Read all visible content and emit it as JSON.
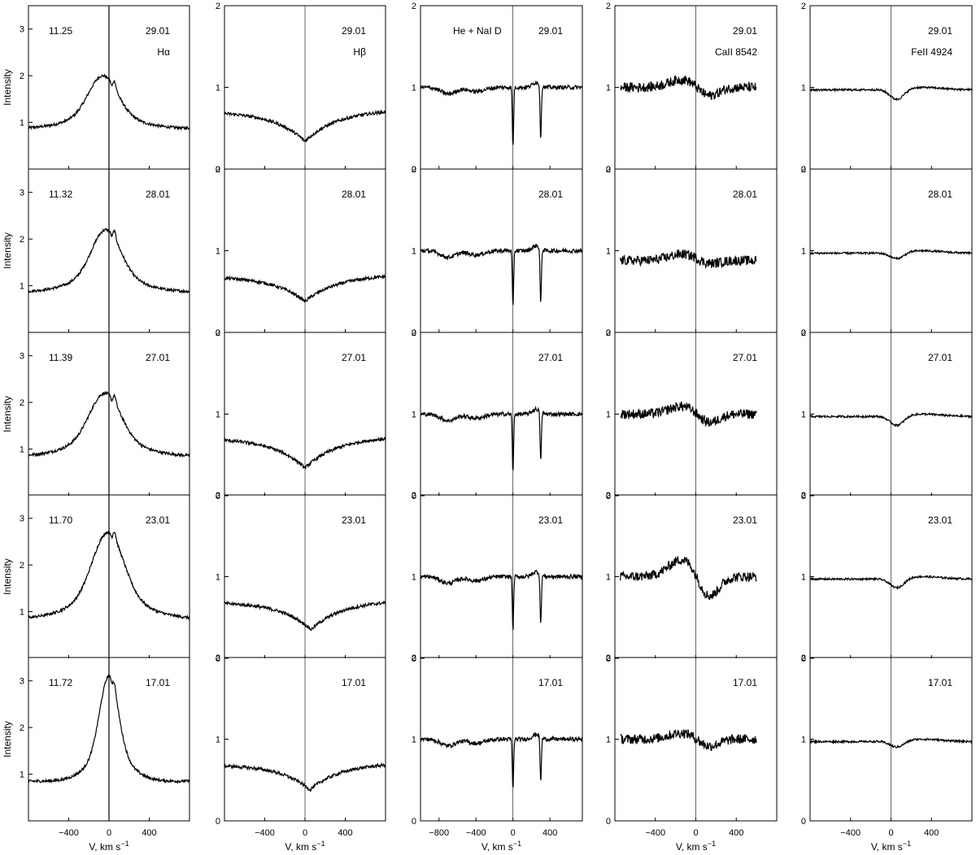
{
  "figure": {
    "ylabel": "Intensity",
    "xlabel_main": "V, km s",
    "xlabel_sup": "−1"
  },
  "chart_data": [
    {
      "type": "line",
      "column": 0,
      "line": "Hα",
      "xlim": [
        -800,
        800
      ],
      "ylim": [
        0,
        3.5
      ],
      "xticks": [
        -400,
        0,
        400
      ],
      "xtick_labels": [
        "−400",
        "0",
        "400"
      ],
      "ytick_values": [
        1,
        2,
        3
      ],
      "ytick_labels": [
        "1",
        "2",
        "3"
      ],
      "ylabel": "Intensity",
      "xlabel": "V, km s−1",
      "profile": {
        "kind": "emission"
      },
      "panels": [
        {
          "date": "29.01",
          "mag": "11.25",
          "label": "Hα",
          "baseline": 0.87,
          "peak": 2.0,
          "peak_v": -60,
          "width": 140
        },
        {
          "date": "28.01",
          "mag": "11.32",
          "baseline": 0.87,
          "peak": 2.2,
          "peak_v": -30,
          "width": 140
        },
        {
          "date": "27.01",
          "mag": "11.39",
          "baseline": 0.85,
          "peak": 2.2,
          "peak_v": -40,
          "width": 150
        },
        {
          "date": "23.01",
          "mag": "11.70",
          "baseline": 0.85,
          "peak": 2.7,
          "peak_v": -10,
          "width": 150
        },
        {
          "date": "17.01",
          "mag": "11.72",
          "baseline": 0.85,
          "peak": 3.1,
          "peak_v": 0,
          "width": 90
        }
      ]
    },
    {
      "type": "line",
      "column": 1,
      "line": "Hβ",
      "xlim": [
        -800,
        800
      ],
      "ylim": [
        0,
        2
      ],
      "xticks": [
        -400,
        0,
        400
      ],
      "xtick_labels": [
        "−400",
        "0",
        "400"
      ],
      "ytick_values": [
        0,
        1,
        2
      ],
      "ytick_labels": [
        "0",
        "1",
        "2"
      ],
      "xlabel": "V, km s−1",
      "profile": {
        "kind": "absorption"
      },
      "panels": [
        {
          "date": "29.01",
          "label": "Hβ",
          "baseline": 0.72,
          "depth": 0.38,
          "center_v": 0,
          "width": 320
        },
        {
          "date": "28.01",
          "baseline": 0.7,
          "depth": 0.32,
          "center_v": 0,
          "width": 320
        },
        {
          "date": "27.01",
          "baseline": 0.72,
          "depth": 0.38,
          "center_v": 0,
          "width": 320
        },
        {
          "date": "23.01",
          "baseline": 0.7,
          "depth": 0.35,
          "center_v": 60,
          "width": 300
        },
        {
          "date": "17.01",
          "baseline": 0.7,
          "depth": 0.32,
          "center_v": 50,
          "width": 300
        }
      ]
    },
    {
      "type": "line",
      "column": 2,
      "line": "He + NaI D",
      "xlim": [
        -1000,
        750
      ],
      "ylim": [
        0,
        2
      ],
      "xticks": [
        -800,
        -400,
        0,
        400
      ],
      "xtick_labels": [
        "−800",
        "−400",
        "0",
        "400"
      ],
      "ytick_values": [
        0,
        1,
        2
      ],
      "ytick_labels": [
        "0",
        "1",
        "2"
      ],
      "xlabel": "V, km s−1",
      "profile": {
        "kind": "nad"
      },
      "panels": [
        {
          "date": "29.01",
          "label": "He + NaI D",
          "baseline": 1.0,
          "dip1_v": 0,
          "dip1_depth": 0.73,
          "dip2_v": 300,
          "dip2_depth": 0.65
        },
        {
          "date": "28.01",
          "baseline": 1.0,
          "dip1_v": 0,
          "dip1_depth": 0.7,
          "dip2_v": 300,
          "dip2_depth": 0.68
        },
        {
          "date": "27.01",
          "baseline": 1.0,
          "dip1_v": 0,
          "dip1_depth": 0.72,
          "dip2_v": 300,
          "dip2_depth": 0.6
        },
        {
          "date": "23.01",
          "baseline": 1.0,
          "dip1_v": 0,
          "dip1_depth": 0.65,
          "dip2_v": 300,
          "dip2_depth": 0.62
        },
        {
          "date": "17.01",
          "baseline": 1.0,
          "dip1_v": 0,
          "dip1_depth": 0.62,
          "dip2_v": 300,
          "dip2_depth": 0.55
        }
      ]
    },
    {
      "type": "line",
      "column": 3,
      "line": "CaII 8542",
      "xlim": [
        -800,
        800
      ],
      "ylim": [
        0,
        2
      ],
      "xticks": [
        -400,
        0,
        400
      ],
      "xtick_labels": [
        "−400",
        "0",
        "400"
      ],
      "ytick_values": [
        0,
        1,
        2
      ],
      "ytick_labels": [
        "0",
        "1",
        "2"
      ],
      "xlabel": "V, km s−1",
      "profile": {
        "kind": "noisy"
      },
      "panels": [
        {
          "date": "29.01",
          "label": "CaII 8542",
          "baseline": 1.0,
          "bump": 0.1,
          "dip": 0.12
        },
        {
          "date": "28.01",
          "baseline": 0.88,
          "bump": 0.08,
          "dip": 0.05
        },
        {
          "date": "27.01",
          "baseline": 1.0,
          "bump": 0.1,
          "dip": 0.12
        },
        {
          "date": "23.01",
          "baseline": 1.0,
          "bump": 0.22,
          "dip": 0.28
        },
        {
          "date": "17.01",
          "baseline": 1.0,
          "bump": 0.08,
          "dip": 0.1
        }
      ]
    },
    {
      "type": "line",
      "column": 4,
      "line": "FeII 4924",
      "xlim": [
        -800,
        800
      ],
      "ylim": [
        0,
        2
      ],
      "xticks": [
        -400,
        0,
        400
      ],
      "xtick_labels": [
        "−400",
        "0",
        "400"
      ],
      "ytick_values": [
        0,
        1,
        2
      ],
      "ytick_labels": [
        "0",
        "1",
        "2"
      ],
      "xlabel": "V, km s−1",
      "profile": {
        "kind": "weakdip"
      },
      "panels": [
        {
          "date": "29.01",
          "label": "FeII 4924",
          "baseline": 0.97,
          "depth": 0.13,
          "center_v": 60
        },
        {
          "date": "28.01",
          "baseline": 0.97,
          "depth": 0.08,
          "center_v": 60
        },
        {
          "date": "27.01",
          "baseline": 0.97,
          "depth": 0.12,
          "center_v": 60
        },
        {
          "date": "23.01",
          "baseline": 0.97,
          "depth": 0.12,
          "center_v": 60
        },
        {
          "date": "17.01",
          "baseline": 0.97,
          "depth": 0.08,
          "center_v": 60
        }
      ]
    }
  ]
}
